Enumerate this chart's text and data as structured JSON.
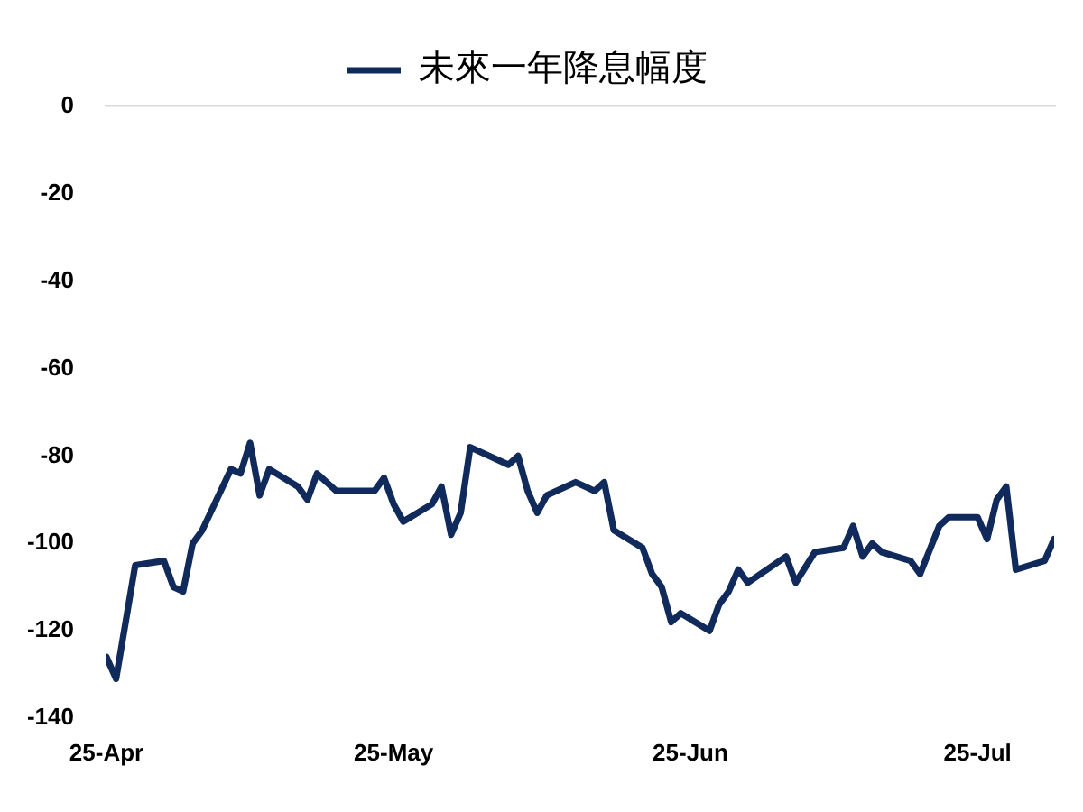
{
  "chart_data": {
    "type": "line",
    "x": [
      "--04-25",
      "--04-26",
      "--04-28",
      "--05-01",
      "--05-02",
      "--05-03",
      "--05-04",
      "--05-05",
      "--05-08",
      "--05-09",
      "--05-10",
      "--05-11",
      "--05-12",
      "--05-15",
      "--05-16",
      "--05-17",
      "--05-19",
      "--05-23",
      "--05-24",
      "--05-25",
      "--05-26",
      "--05-29",
      "--05-30",
      "--05-31",
      "--06-01",
      "--06-02",
      "--06-06",
      "--06-07",
      "--06-08",
      "--06-09",
      "--06-10",
      "--06-13",
      "--06-14",
      "--06-15",
      "--06-16",
      "--06-17",
      "--06-20",
      "--06-21",
      "--06-22",
      "--06-23",
      "--06-24",
      "--06-27",
      "--06-28",
      "--06-29",
      "--06-30",
      "--07-01",
      "--07-05",
      "--07-06",
      "--07-08",
      "--07-11",
      "--07-12",
      "--07-13",
      "--07-14",
      "--07-15",
      "--07-18",
      "--07-19",
      "--07-21",
      "--07-22",
      "--07-25",
      "--07-26",
      "--07-27",
      "--07-28",
      "--07-29",
      "--08-01",
      "--08-02"
    ],
    "series": [
      {
        "name": "未來一年降息幅度",
        "color": "#102a5c",
        "values": [
          -126,
          -131,
          -105,
          -104,
          -110,
          -111,
          -100,
          -97,
          -83,
          -84,
          -77,
          -89,
          -83,
          -87,
          -90,
          -84,
          -88,
          -88,
          -85,
          -91,
          -95,
          -91,
          -87,
          -98,
          -93,
          -78,
          -82,
          -80,
          -88,
          -93,
          -89,
          -86,
          -87,
          -88,
          -86,
          -97,
          -101,
          -107,
          -110,
          -118,
          -116,
          -120,
          -114,
          -111,
          -106,
          -109,
          -103,
          -109,
          -102,
          -101,
          -96,
          -103,
          -100,
          -102,
          -104,
          -107,
          -96,
          -94,
          -94,
          -99,
          -90,
          -87,
          -106,
          -104,
          -99
        ]
      }
    ],
    "xlim": [
      "--04-25",
      "--08-02"
    ],
    "xticks": [
      {
        "value": "--04-25",
        "label": "25-Apr"
      },
      {
        "value": "--05-25",
        "label": "25-May"
      },
      {
        "value": "--06-25",
        "label": "25-Jun"
      },
      {
        "value": "--07-25",
        "label": "25-Jul"
      }
    ],
    "ylim": [
      -140,
      0
    ],
    "yticks": [
      -140,
      -120,
      -100,
      -80,
      -60,
      -40,
      -20,
      0
    ],
    "legend": "top",
    "marker": "none"
  }
}
